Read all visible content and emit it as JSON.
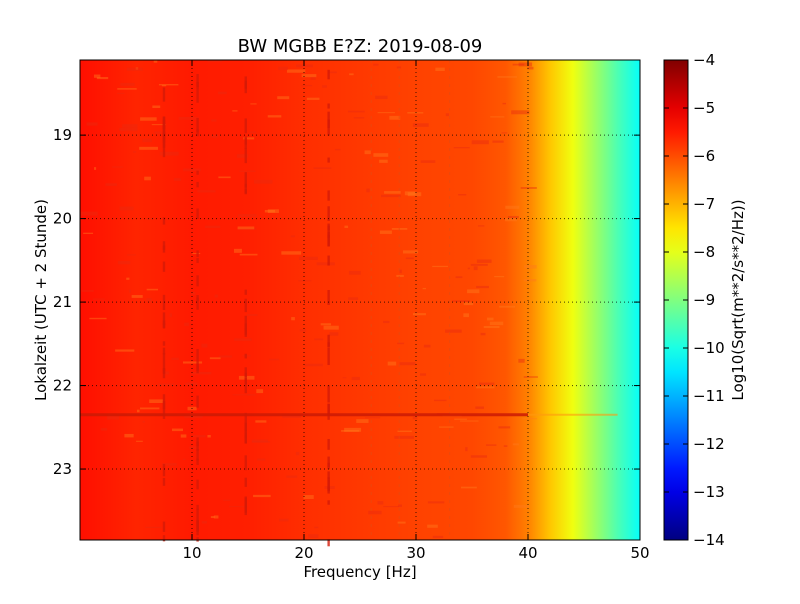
{
  "chart_data": {
    "type": "heatmap",
    "title": "BW MGBB E?Z: 2019-08-09",
    "xlabel": "Frequency [Hz]",
    "ylabel": "Lokalzeit (UTC + 2 Stunde)",
    "xlim": [
      0,
      50
    ],
    "ylim": [
      18.1,
      23.85
    ],
    "y_inverted": true,
    "x_ticks": [
      10,
      20,
      30,
      40,
      50
    ],
    "x_tick_labels": [
      "10",
      "20",
      "30",
      "40",
      "50"
    ],
    "y_ticks": [
      19,
      20,
      21,
      22,
      23
    ],
    "y_tick_labels": [
      "19",
      "20",
      "21",
      "22",
      "23"
    ],
    "grid": true,
    "colormap": "jet",
    "colorbar": {
      "label": "Log10(Sqrt(m**2/s**2/Hz))",
      "range": [
        -14,
        -4
      ],
      "ticks": [
        -4,
        -5,
        -6,
        -7,
        -8,
        -9,
        -10,
        -11,
        -12,
        -13,
        -14
      ],
      "tick_labels": [
        "−4",
        "−5",
        "−6",
        "−7",
        "−8",
        "−9",
        "−10",
        "−11",
        "−12",
        "−13",
        "−14"
      ]
    },
    "spectrum_profile": {
      "frequency_hz": [
        0,
        5,
        10,
        15,
        20,
        25,
        30,
        35,
        38,
        40,
        42,
        44,
        46,
        48,
        50
      ],
      "log10_amplitude": [
        -5.4,
        -5.6,
        -5.5,
        -5.55,
        -5.7,
        -5.8,
        -5.9,
        -5.95,
        -6.1,
        -6.5,
        -7.2,
        -7.9,
        -8.7,
        -9.5,
        -10.2
      ]
    },
    "persistent_lines_hz": [
      7.5,
      10.5,
      14.8,
      22.2
    ],
    "broadband_event_time": 22.35
  }
}
